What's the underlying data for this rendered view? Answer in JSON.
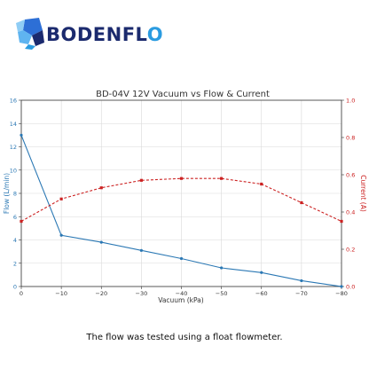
{
  "brand": {
    "name": "BODENFLO"
  },
  "caption": "The flow was tested using a float flowmeter.",
  "chart_data": {
    "type": "line",
    "title": "BD-04V 12V Vacuum vs Flow & Current",
    "xlabel": "Vacuum (kPa)",
    "ylabel_left": "Flow (L/min)",
    "ylabel_right": "Current (A)",
    "x": [
      0,
      -10,
      -20,
      -30,
      -40,
      -50,
      -60,
      -70,
      -80
    ],
    "x_tick_labels": [
      "0",
      "−10",
      "−20",
      "−30",
      "−40",
      "−50",
      "−60",
      "−70",
      "−80"
    ],
    "xlim": [
      0,
      -80
    ],
    "ylim_left": [
      0,
      16
    ],
    "ylim_right": [
      0,
      1.0
    ],
    "y_left_ticks": [
      "0",
      "2",
      "4",
      "6",
      "8",
      "10",
      "12",
      "14",
      "16"
    ],
    "y_right_ticks": [
      "0.0",
      "0.2",
      "0.4",
      "0.6",
      "0.8",
      "1.0"
    ],
    "grid": true,
    "colors": {
      "flow": "#2b78b4",
      "current": "#cc2222",
      "grid": "#d9d9d9",
      "axis": "#333333"
    },
    "series": [
      {
        "axis": "left",
        "style": "solid",
        "values": [
          13.0,
          4.4,
          3.8,
          3.1,
          2.4,
          1.6,
          1.2,
          0.5,
          0.0
        ]
      },
      {
        "axis": "right",
        "style": "dashed",
        "values": [
          0.35,
          0.47,
          0.53,
          0.57,
          0.58,
          0.58,
          0.55,
          0.45,
          0.35
        ]
      }
    ]
  }
}
